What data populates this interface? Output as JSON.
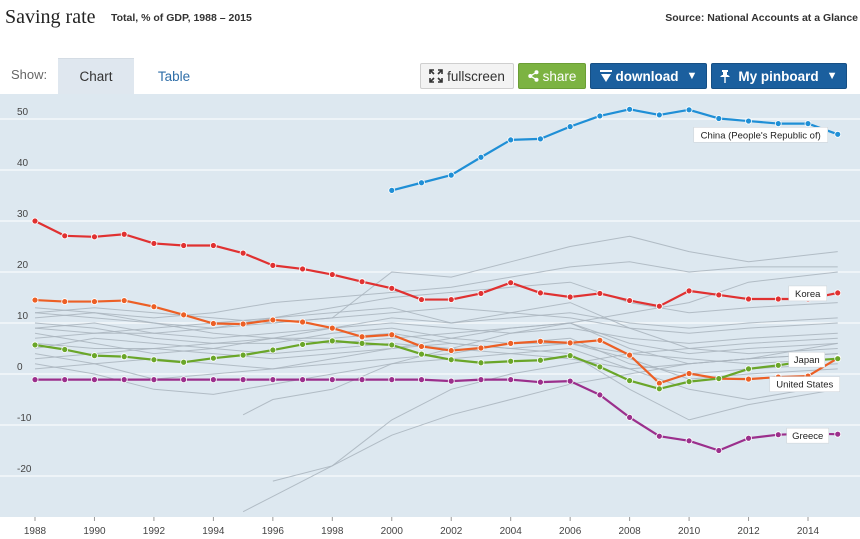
{
  "header": {
    "title": "Saving rate",
    "subtitle": "Total, % of GDP, 1988 – 2015",
    "source": "Source: National Accounts at a Glance"
  },
  "toolbar": {
    "show_label": "Show:",
    "tabs": [
      {
        "label": "Chart",
        "active": true
      },
      {
        "label": "Table",
        "active": false
      }
    ],
    "fullscreen_label": "fullscreen",
    "share_label": "share",
    "download_label": "download",
    "pinboard_label": "My pinboard"
  },
  "colors": {
    "plot_bg": "#dde8f0",
    "background_line": "#a9b4bd",
    "china": "#1f8fd6",
    "korea": "#e03131",
    "japan_orange": "#ec5f25",
    "united_states": "#6aa629",
    "greece": "#9b2f8c"
  },
  "chart_data": {
    "type": "line",
    "title": "Saving rate",
    "xlabel": "",
    "ylabel": "",
    "xlim": [
      1987.7,
      2015.6
    ],
    "ylim": [
      -27,
      54
    ],
    "xticks": [
      1988,
      1990,
      1992,
      1994,
      1996,
      1998,
      2000,
      2002,
      2004,
      2006,
      2008,
      2010,
      2012,
      2014
    ],
    "yticks": [
      50,
      40,
      30,
      20,
      10,
      0,
      -10,
      -20
    ],
    "grid": true,
    "highlighted_series": [
      {
        "name": "China (People's Republic of)",
        "color_key": "china",
        "x": [
          2000,
          2001,
          2002,
          2003,
          2004,
          2005,
          2006,
          2007,
          2008,
          2009,
          2010,
          2011,
          2012,
          2013,
          2014,
          2015
        ],
        "values": [
          36.0,
          37.5,
          39.0,
          42.5,
          45.9,
          46.1,
          48.5,
          50.6,
          51.9,
          50.8,
          51.8,
          50.1,
          49.6,
          49.1,
          49.1,
          47.0
        ]
      },
      {
        "name": "Korea",
        "color_key": "korea",
        "x": [
          1988,
          1989,
          1990,
          1991,
          1992,
          1993,
          1994,
          1995,
          1996,
          1997,
          1998,
          1999,
          2000,
          2001,
          2002,
          2003,
          2004,
          2005,
          2006,
          2007,
          2008,
          2009,
          2010,
          2011,
          2012,
          2013,
          2014,
          2015
        ],
        "values": [
          30.0,
          27.1,
          26.9,
          27.4,
          25.6,
          25.2,
          25.2,
          23.7,
          21.3,
          20.6,
          19.5,
          18.1,
          16.8,
          14.6,
          14.6,
          15.8,
          17.9,
          15.9,
          15.1,
          15.8,
          14.4,
          13.3,
          16.3,
          15.5,
          14.7,
          14.7,
          14.7,
          15.9
        ]
      },
      {
        "name": "Japan",
        "color_key": "japan_orange",
        "x": [
          1988,
          1989,
          1990,
          1991,
          1992,
          1993,
          1994,
          1995,
          1996,
          1997,
          1998,
          1999,
          2000,
          2001,
          2002,
          2003,
          2004,
          2005,
          2006,
          2007,
          2008,
          2009,
          2010,
          2011,
          2012,
          2013,
          2014,
          2015
        ],
        "values": [
          14.5,
          14.2,
          14.2,
          14.4,
          13.2,
          11.6,
          9.9,
          9.8,
          10.6,
          10.2,
          9.0,
          7.3,
          7.7,
          5.4,
          4.6,
          5.1,
          6.0,
          6.4,
          6.1,
          6.6,
          3.7,
          -1.8,
          0.1,
          -0.9,
          -1.0,
          -0.6,
          -0.4,
          3.1
        ]
      },
      {
        "name": "United States",
        "color_key": "united_states",
        "x": [
          1988,
          1989,
          1990,
          1991,
          1992,
          1993,
          1994,
          1995,
          1996,
          1997,
          1998,
          1999,
          2000,
          2001,
          2002,
          2003,
          2004,
          2005,
          2006,
          2007,
          2008,
          2009,
          2010,
          2011,
          2012,
          2013,
          2014,
          2015
        ],
        "values": [
          5.7,
          4.8,
          3.6,
          3.4,
          2.8,
          2.3,
          3.1,
          3.7,
          4.7,
          5.8,
          6.5,
          6.0,
          5.7,
          3.9,
          2.8,
          2.2,
          2.5,
          2.7,
          3.6,
          1.4,
          -1.3,
          -2.9,
          -1.5,
          -0.9,
          1.0,
          1.7,
          2.6,
          3.0
        ]
      },
      {
        "name": "Greece",
        "color_key": "greece",
        "x": [
          1988,
          1989,
          1990,
          1991,
          1992,
          1993,
          1994,
          1995,
          1996,
          1997,
          1998,
          1999,
          2000,
          2001,
          2002,
          2003,
          2004,
          2005,
          2006,
          2007,
          2008,
          2009,
          2010,
          2011,
          2012,
          2013,
          2014,
          2015
        ],
        "values": [
          -1.1,
          -1.1,
          -1.1,
          -1.1,
          -1.1,
          -1.1,
          -1.1,
          -1.1,
          -1.1,
          -1.1,
          -1.1,
          -1.1,
          -1.1,
          -1.1,
          -1.4,
          -1.1,
          -1.1,
          -1.6,
          -1.4,
          -4.1,
          -8.5,
          -12.2,
          -13.1,
          -15.0,
          -12.6,
          -11.9,
          -11.7,
          -11.8
        ]
      }
    ],
    "background_series": [
      {
        "x": [
          1988,
          1990,
          1992,
          1994,
          1996,
          1998,
          2000,
          2002,
          2004,
          2006,
          2008,
          2010,
          2012,
          2015
        ],
        "values": [
          12,
          11,
          10,
          9,
          11,
          12,
          13,
          10,
          11,
          12,
          10,
          9,
          10,
          11
        ]
      },
      {
        "x": [
          1988,
          1990,
          1992,
          1994,
          1996,
          1998,
          2000,
          2002,
          2004,
          2006,
          2008,
          2010,
          2012,
          2015
        ],
        "values": [
          9,
          10,
          8,
          7,
          8,
          9,
          10,
          9,
          8,
          9,
          7,
          6,
          7,
          8
        ]
      },
      {
        "x": [
          1988,
          1990,
          1992,
          1994,
          1996,
          1998,
          2000,
          2002,
          2004,
          2006,
          2008,
          2010,
          2012,
          2015
        ],
        "values": [
          7,
          8,
          9,
          10,
          11,
          13,
          15,
          16,
          17,
          18,
          14,
          12,
          13,
          14
        ]
      },
      {
        "x": [
          1988,
          1990,
          1992,
          1994,
          1996,
          1998,
          2000,
          2002,
          2004,
          2006,
          2008,
          2010,
          2012,
          2015
        ],
        "values": [
          11,
          12,
          10,
          8,
          7,
          6,
          7,
          8,
          9,
          10,
          6,
          4,
          5,
          6
        ]
      },
      {
        "x": [
          1988,
          1990,
          1992,
          1994,
          1996,
          1998,
          2000,
          2002,
          2004,
          2006,
          2008,
          2010,
          2012,
          2015
        ],
        "values": [
          8,
          6,
          4,
          5,
          7,
          9,
          11,
          10,
          12,
          14,
          9,
          5,
          4,
          5
        ]
      },
      {
        "x": [
          1988,
          1990,
          1992,
          1994,
          1996,
          1998,
          2000,
          2002,
          2004,
          2006,
          2008,
          2010,
          2012,
          2015
        ],
        "values": [
          5,
          7,
          6,
          5,
          4,
          5,
          6,
          5,
          4,
          3,
          1,
          2,
          3,
          4
        ]
      },
      {
        "x": [
          1988,
          1990,
          1992,
          1994,
          1996,
          1998,
          2000,
          2002,
          2004,
          2006,
          2008,
          2010,
          2012,
          2015
        ],
        "values": [
          10,
          9,
          7,
          6,
          6,
          8,
          9,
          7,
          6,
          6,
          4,
          5,
          6,
          7
        ]
      },
      {
        "x": [
          1988,
          1990,
          1992,
          1994,
          1996,
          1998,
          2000,
          2002,
          2004,
          2006,
          2008,
          2010,
          2012,
          2015
        ],
        "values": [
          4,
          2,
          -1,
          0,
          1,
          2,
          3,
          4,
          6,
          7,
          2,
          0,
          1,
          2
        ]
      },
      {
        "x": [
          1988,
          1990,
          1992,
          1994,
          1996,
          1998,
          2000,
          2002,
          2004,
          2006,
          2008,
          2010,
          2012,
          2015
        ],
        "values": [
          2,
          0,
          -3,
          -4,
          -2,
          0,
          2,
          3,
          4,
          5,
          1,
          -3,
          -5,
          -2
        ]
      },
      {
        "x": [
          1988,
          1990,
          1992,
          1994,
          1996,
          1998,
          2000,
          2002,
          2004,
          2006,
          2008,
          2010,
          2012,
          2015
        ],
        "values": [
          13,
          12,
          11,
          12,
          14,
          15,
          16,
          17,
          19,
          21,
          22,
          20,
          21,
          21
        ]
      },
      {
        "x": [
          1995,
          1996,
          1998,
          2000,
          2002,
          2004,
          2006,
          2008,
          2010,
          2012,
          2015
        ],
        "values": [
          -8,
          -5,
          -3,
          2,
          5,
          8,
          10,
          12,
          14,
          18,
          20
        ]
      },
      {
        "x": [
          1995,
          1996,
          1998,
          2000,
          2002,
          2004,
          2006,
          2008,
          2010,
          2012,
          2015
        ],
        "values": [
          -27,
          -24,
          -18,
          -12,
          -8,
          -5,
          -2,
          0,
          2,
          3,
          4
        ]
      },
      {
        "x": [
          1996,
          1998,
          2000,
          2002,
          2004,
          2006,
          2008,
          2010,
          2012,
          2015
        ],
        "values": [
          -21,
          -18,
          -9,
          -3,
          0,
          2,
          4,
          3,
          2,
          3
        ]
      },
      {
        "x": [
          1988,
          1990,
          1992,
          1994,
          1996,
          1998,
          2000,
          2002,
          2004,
          2006,
          2008,
          2010,
          2012,
          2015
        ],
        "values": [
          6,
          5,
          5,
          6,
          7,
          7,
          8,
          6,
          5,
          6,
          3,
          -1,
          0,
          1
        ]
      },
      {
        "x": [
          1988,
          1990,
          1992,
          1994,
          1996,
          1998,
          2000,
          2002,
          2004,
          2006,
          2008,
          2010,
          2012,
          2015
        ],
        "values": [
          9,
          8,
          8,
          9,
          10,
          11,
          20,
          19,
          22,
          25,
          27,
          24,
          22,
          24
        ]
      },
      {
        "x": [
          1988,
          1990,
          1992,
          1994,
          1996,
          1998,
          2000,
          2002,
          2004,
          2006,
          2008,
          2010,
          2012,
          2015
        ],
        "values": [
          3,
          4,
          5,
          4,
          3,
          4,
          5,
          6,
          5,
          4,
          -3,
          -9,
          -6,
          -3
        ]
      },
      {
        "x": [
          1988,
          1990,
          1992,
          1994,
          1996,
          1998,
          2000,
          2002,
          2004,
          2006,
          2008,
          2010,
          2012,
          2015
        ],
        "values": [
          12,
          13,
          12,
          11,
          10,
          11,
          12,
          13,
          12,
          11,
          9,
          8,
          9,
          10
        ]
      },
      {
        "x": [
          1988,
          1990,
          1992,
          1994,
          1996,
          1998,
          2000,
          2002,
          2004,
          2006,
          2008,
          2010,
          2012,
          2015
        ],
        "values": [
          1,
          2,
          3,
          2,
          1,
          3,
          5,
          7,
          9,
          10,
          5,
          2,
          3,
          6
        ]
      }
    ],
    "annotations": [
      {
        "series": "China (People's Republic of)",
        "label": "China (People's Republic of)"
      },
      {
        "series": "Korea",
        "label": "Korea"
      },
      {
        "series": "Japan",
        "label": "Japan"
      },
      {
        "series": "United States",
        "label": "United States"
      },
      {
        "series": "Greece",
        "label": "Greece"
      }
    ]
  }
}
